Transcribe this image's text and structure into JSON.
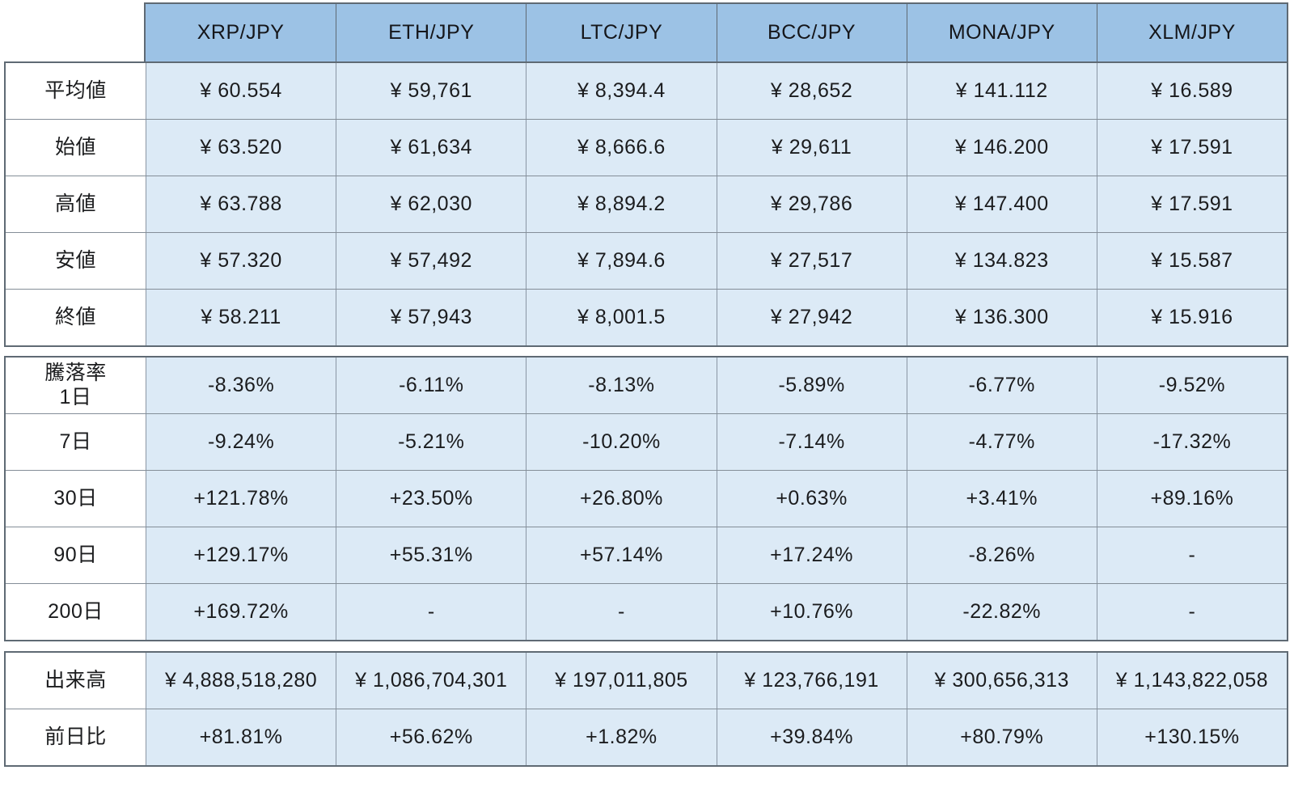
{
  "chart_data": {
    "type": "table",
    "title": "",
    "currency": "JPY",
    "columns": [
      "XRP/JPY",
      "ETH/JPY",
      "LTC/JPY",
      "BCC/JPY",
      "MONA/JPY",
      "XLM/JPY"
    ],
    "row_groups": [
      {
        "name": "prices",
        "rows": [
          {
            "label": "平均値",
            "values": [
              "¥ 60.554",
              "¥ 59,761",
              "¥ 8,394.4",
              "¥ 28,652",
              "¥ 141.112",
              "¥ 16.589"
            ]
          },
          {
            "label": "始値",
            "values": [
              "¥ 63.520",
              "¥ 61,634",
              "¥ 8,666.6",
              "¥ 29,611",
              "¥ 146.200",
              "¥ 17.591"
            ]
          },
          {
            "label": "高値",
            "values": [
              "¥ 63.788",
              "¥ 62,030",
              "¥ 8,894.2",
              "¥ 29,786",
              "¥ 147.400",
              "¥ 17.591"
            ]
          },
          {
            "label": "安値",
            "values": [
              "¥ 57.320",
              "¥ 57,492",
              "¥ 7,894.6",
              "¥ 27,517",
              "¥ 134.823",
              "¥ 15.587"
            ]
          },
          {
            "label": "終値",
            "values": [
              "¥ 58.211",
              "¥ 57,943",
              "¥ 8,001.5",
              "¥ 27,942",
              "¥ 136.300",
              "¥ 15.916"
            ]
          }
        ]
      },
      {
        "name": "change-rates",
        "rows": [
          {
            "label": "騰落率\n1日",
            "values": [
              "-8.36%",
              "-6.11%",
              "-8.13%",
              "-5.89%",
              "-6.77%",
              "-9.52%"
            ]
          },
          {
            "label": "7日",
            "values": [
              "-9.24%",
              "-5.21%",
              "-10.20%",
              "-7.14%",
              "-4.77%",
              "-17.32%"
            ]
          },
          {
            "label": "30日",
            "values": [
              "+121.78%",
              "+23.50%",
              "+26.80%",
              "+0.63%",
              "+3.41%",
              "+89.16%"
            ]
          },
          {
            "label": "90日",
            "values": [
              "+129.17%",
              "+55.31%",
              "+57.14%",
              "+17.24%",
              "-8.26%",
              "-"
            ]
          },
          {
            "label": "200日",
            "values": [
              "+169.72%",
              "-",
              "-",
              "+10.76%",
              "-22.82%",
              "-"
            ]
          }
        ]
      },
      {
        "name": "volume",
        "rows": [
          {
            "label": "出来高",
            "values": [
              "¥ 4,888,518,280",
              "¥ 1,086,704,301",
              "¥ 197,011,805",
              "¥ 123,766,191",
              "¥ 300,656,313",
              "¥ 1,143,822,058"
            ]
          },
          {
            "label": "前日比",
            "values": [
              "+81.81%",
              "+56.62%",
              "+1.82%",
              "+39.84%",
              "+80.79%",
              "+130.15%"
            ]
          }
        ]
      }
    ],
    "colors": {
      "header_bg": "#9cc2e5",
      "cell_bg": "#dceaf6",
      "label_bg": "#ffffff",
      "outer_border": "#5f6a74",
      "inner_border": "#8a96a4",
      "text": "#1b1c1e"
    }
  }
}
